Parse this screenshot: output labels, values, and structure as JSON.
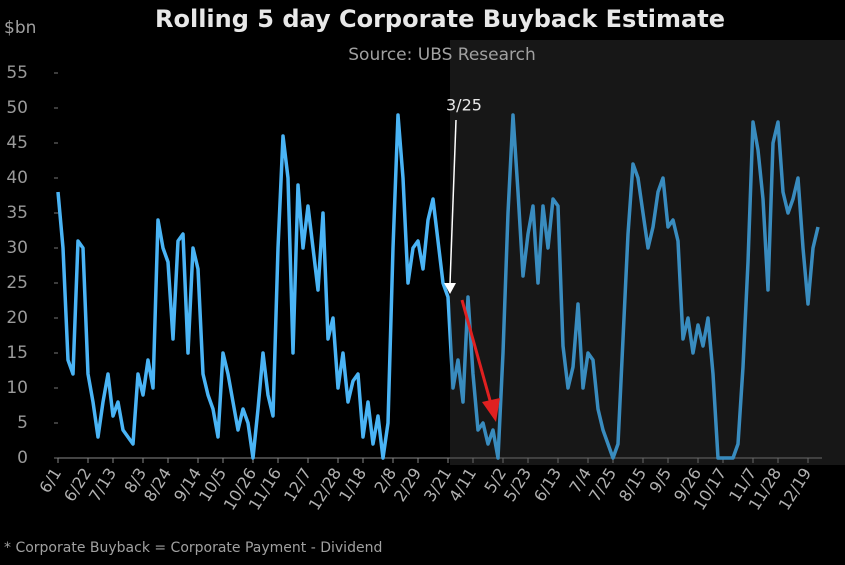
{
  "chart_data": {
    "type": "line",
    "title": "Rolling 5 day Corporate Buyback Estimate",
    "subtitle": "Source: UBS Research",
    "y_label": "$bn",
    "footnote": "* Corporate Buyback = Corporate Payment - Dividend",
    "annotation": "3/25",
    "categories": [
      "6/1",
      null,
      null,
      null,
      null,
      null,
      "6/22",
      null,
      null,
      null,
      null,
      "7/13",
      null,
      null,
      null,
      null,
      null,
      "8/3",
      null,
      null,
      null,
      null,
      "8/24",
      null,
      null,
      null,
      null,
      null,
      "9/14",
      null,
      null,
      null,
      null,
      "10/5",
      null,
      null,
      null,
      null,
      null,
      "10/26",
      null,
      null,
      null,
      null,
      "11/16",
      null,
      null,
      null,
      null,
      null,
      "12/7",
      null,
      null,
      null,
      null,
      null,
      "12/28",
      null,
      null,
      null,
      null,
      "1/18",
      null,
      null,
      null,
      null,
      null,
      "2/8",
      null,
      null,
      null,
      null,
      "2/29",
      null,
      null,
      null,
      null,
      null,
      "3/21",
      null,
      null,
      null,
      null,
      "4/11",
      null,
      null,
      null,
      null,
      null,
      "5/2",
      null,
      null,
      null,
      null,
      "5/23",
      null,
      null,
      null,
      null,
      null,
      "6/13",
      null,
      null,
      null,
      null,
      null,
      "7/4",
      null,
      null,
      null,
      null,
      "7/25",
      null,
      null,
      null,
      null,
      null,
      "8/15",
      null,
      null,
      null,
      null,
      "9/5",
      null,
      null,
      null,
      null,
      null,
      "9/26",
      null,
      null,
      null,
      null,
      "10/17",
      null,
      null,
      null,
      null,
      null,
      "11/7",
      null,
      null,
      null,
      null,
      "11/28",
      null,
      null,
      null,
      null,
      null,
      "12/19",
      null,
      null
    ],
    "series": [
      {
        "color": "#4ab4f5",
        "values": [
          38,
          30,
          14,
          12,
          31,
          30,
          12,
          8,
          3,
          8,
          12,
          6,
          8,
          4,
          3,
          2,
          12,
          9,
          14,
          10,
          34,
          30,
          28,
          17,
          31,
          32,
          15,
          30,
          27,
          12,
          9,
          7,
          3,
          15,
          12,
          8,
          4,
          7,
          5,
          0,
          7,
          15,
          9,
          6,
          30,
          46,
          40,
          15,
          39,
          30,
          36,
          30,
          24,
          35,
          17,
          20,
          10,
          15,
          8,
          11,
          12,
          3,
          8,
          2,
          6,
          0,
          5,
          30,
          49,
          40,
          25,
          30,
          31,
          27,
          34,
          37,
          31,
          25,
          23,
          10,
          14,
          8,
          23,
          12,
          4,
          5,
          2,
          4,
          0,
          15,
          35,
          49,
          38,
          26,
          32,
          36,
          25,
          36,
          30,
          37,
          36,
          16,
          10,
          13,
          22,
          10,
          15,
          14,
          7,
          4,
          2,
          0,
          2,
          17,
          32,
          42,
          40,
          35,
          30,
          33,
          38,
          40,
          33,
          34,
          31,
          17,
          20,
          15,
          19,
          16,
          20,
          12,
          0,
          0,
          0,
          0,
          2,
          13,
          28,
          48,
          44,
          37,
          24,
          45,
          48,
          38,
          35,
          37,
          40,
          30,
          22,
          30,
          33
        ]
      }
    ],
    "ylim": [
      0,
      55
    ],
    "yticks": [
      0,
      5,
      10,
      15,
      20,
      25,
      30,
      35,
      40,
      45,
      50,
      55
    ]
  }
}
